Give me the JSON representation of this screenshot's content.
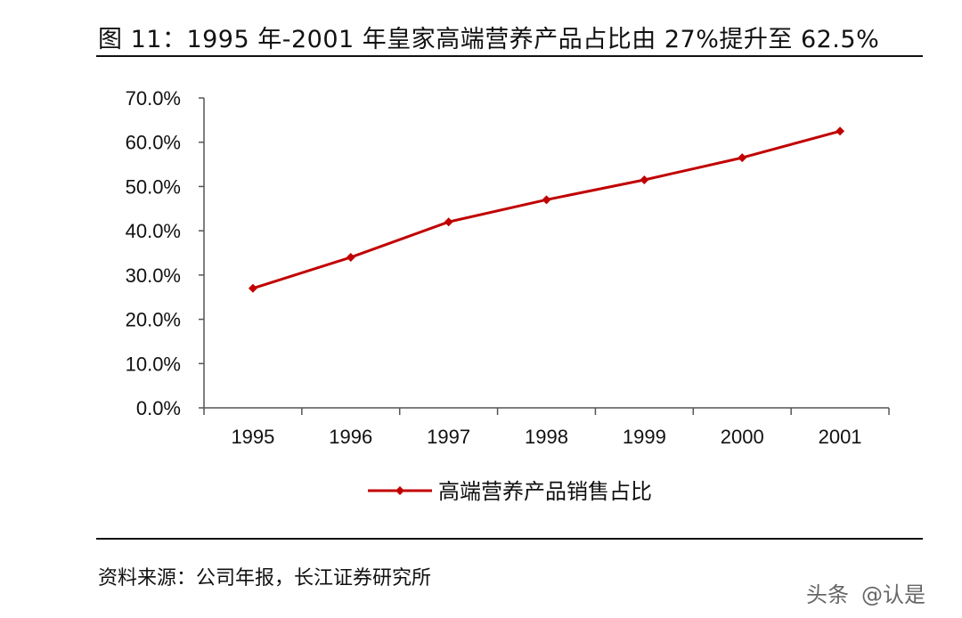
{
  "figure_title": "图 11：1995 年-2001 年皇家高端营养产品占比由 27%提升至 62.5%",
  "source_note": "资料来源：公司年报，长江证券研究所",
  "watermark": {
    "platform_text": "头条",
    "account_text": "@认是"
  },
  "colors": {
    "series_line": "#c00000",
    "text": "#111111",
    "axis": "#555555"
  },
  "chart_data": {
    "type": "line",
    "categories": [
      "1995",
      "1996",
      "1997",
      "1998",
      "1999",
      "2000",
      "2001"
    ],
    "series": [
      {
        "name": "高端营养产品销售占比",
        "values": [
          27.0,
          34.0,
          42.0,
          47.0,
          51.5,
          56.5,
          62.5
        ],
        "marker": "diamond"
      }
    ],
    "ylim": [
      0,
      70
    ],
    "yticks": [
      "0.0%",
      "10.0%",
      "20.0%",
      "30.0%",
      "40.0%",
      "50.0%",
      "60.0%",
      "70.0%"
    ],
    "xlabel": "",
    "ylabel": "",
    "grid": false,
    "legend_position": "bottom-center"
  }
}
